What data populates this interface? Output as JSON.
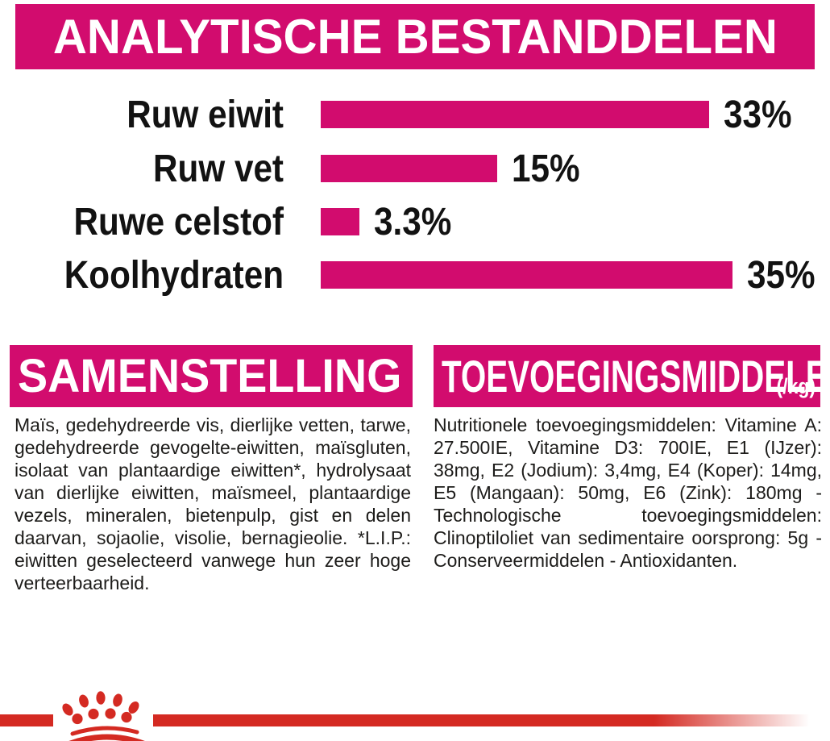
{
  "colors": {
    "magenta": "#D20C6E",
    "red": "#D42A22",
    "text": "#1D1C1A"
  },
  "header": {
    "title": "ANALYTISCHE BESTANDDELEN"
  },
  "chart_data": {
    "type": "bar",
    "orientation": "horizontal",
    "title": "ANALYTISCHE BESTANDDELEN",
    "categories": [
      "Ruw eiwit",
      "Ruw vet",
      "Ruwe celstof",
      "Koolhydraten"
    ],
    "values": [
      33,
      15,
      3.3,
      35
    ],
    "value_labels": [
      "33%",
      "15%",
      "3.3%",
      "35%"
    ],
    "unit": "%",
    "xlim": [
      0,
      36
    ],
    "grid": false,
    "bar_color": "#D20C6E",
    "legend": false
  },
  "sections": {
    "samenstelling": {
      "title": "SAMENSTELLING",
      "body": "Maïs, gedehydreerde vis, dierlijke vetten, tarwe, gedehydreerde gevogelte-eiwitten, maïsgluten, isolaat van plantaardige eiwitten*, hydrolysaat van dierlijke eiwitten, maïsmeel, plantaardige vezels, mineralen, bietenpulp, gist en delen daarvan, sojaolie, visolie, bernagieolie. *L.I.P.: eiwitten geselecteerd vanwege hun zeer hoge verteerbaarheid."
    },
    "toevoegingsmiddelen": {
      "title": "TOEVOEGINGSMIDDELEN",
      "unit_label": "(/kg)",
      "body": "Nutritionele toevoegingsmiddelen: Vitamine A: 27.500IE, Vitamine D3: 700IE, E1 (IJzer): 38mg, E2 (Jodium): 3,4mg, E4 (Koper): 14mg, E5 (Mangaan): 50mg, E6 (Zink): 180mg - Technologische toevoegingsmiddelen: Clinoptiloliet van sedimentaire oorsprong: 5g - Conserveermiddelen - Antioxidanten."
    }
  },
  "footer": {
    "logo": "royal-canin-crown-icon"
  }
}
